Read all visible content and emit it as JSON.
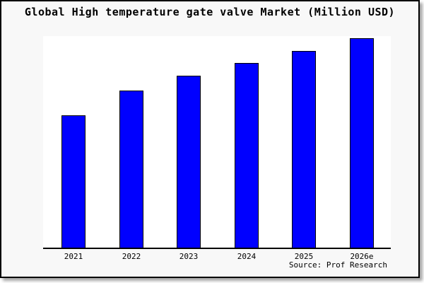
{
  "figure": {
    "title": "Global High temperature gate valve Market (Million USD)",
    "source": "Source: Prof Research",
    "frame_background": "#f8f8f8",
    "plot_background": "#ffffff",
    "bar_fill_color": "#0000ff",
    "bar_edge_color": "#000000",
    "axis_color": "#000000",
    "text_color": "#000000"
  },
  "chart_data": {
    "type": "bar",
    "title": "Global High temperature gate valve Market (Million USD)",
    "categories": [
      "2021",
      "2022",
      "2023",
      "2024",
      "2025",
      "2026e"
    ],
    "values": [
      63,
      75,
      82,
      88,
      94,
      100
    ],
    "values_note": "No y-axis, gridlines or value labels are shown in the figure; values are relative bar heights normalized so the tallest bar (2026e) = 100.",
    "xlabel": "",
    "ylabel": "",
    "ylim": [
      0,
      101
    ],
    "grid": false,
    "legend": false,
    "y_axis_visible": false,
    "x_axis_line": true,
    "annotation": "Source: Prof Research"
  }
}
